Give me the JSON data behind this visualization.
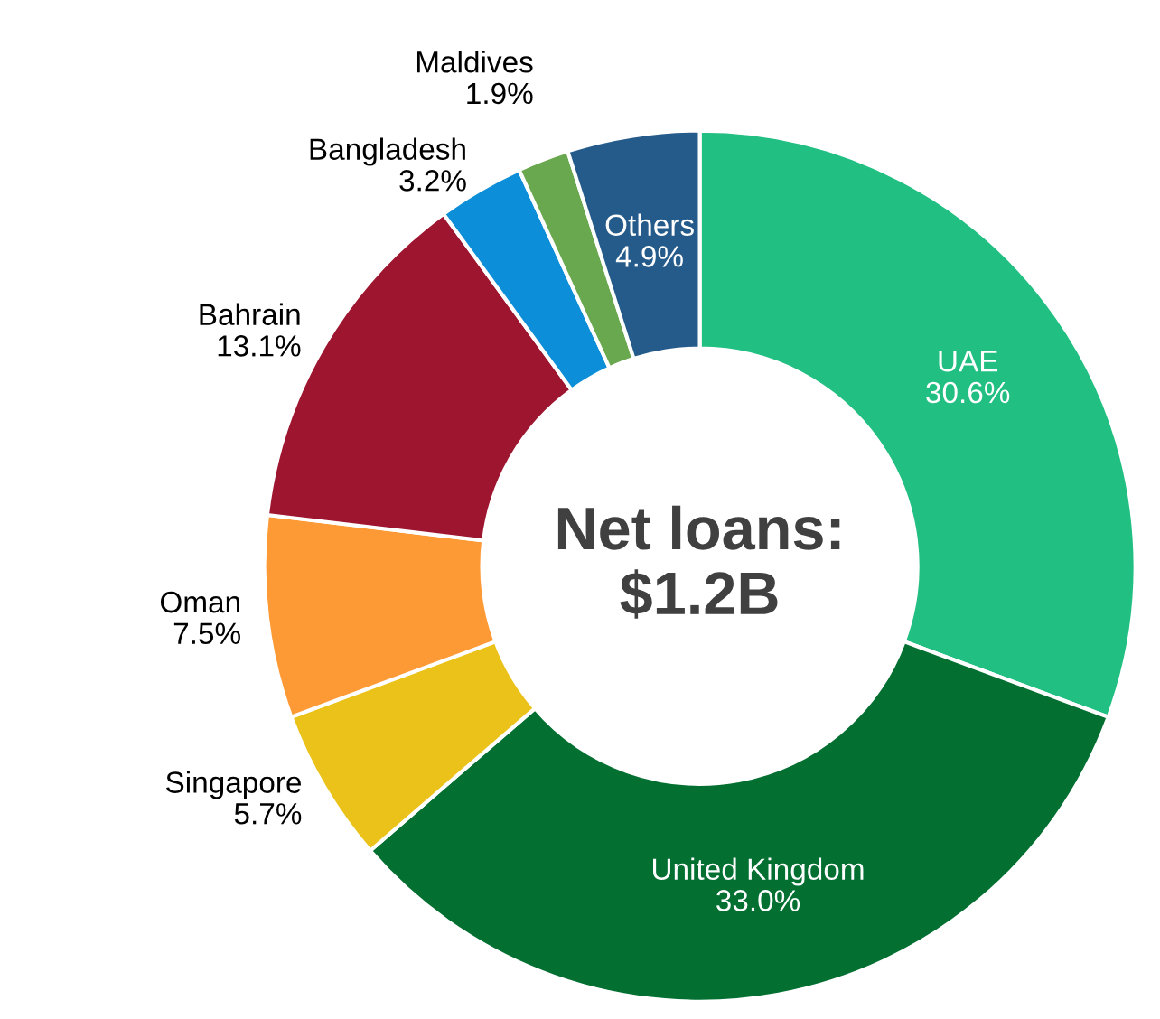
{
  "chart_data": {
    "type": "donut",
    "title": "Net loans:\n$1.2B",
    "categories": [
      "UAE",
      "United Kingdom",
      "Singapore",
      "Oman",
      "Bahrain",
      "Bangladesh",
      "Maldives",
      "Others"
    ],
    "values": [
      30.6,
      33.0,
      5.7,
      7.5,
      13.1,
      3.2,
      1.9,
      4.9
    ],
    "colors": [
      "#21bf82",
      "#037032",
      "#ebc21a",
      "#fd9a35",
      "#9e1530",
      "#0d8ed8",
      "#6aa84f",
      "#255b8a"
    ],
    "value_labels": [
      "30.6%",
      "33.0%",
      "5.7%",
      "7.5%",
      "13.1%",
      "3.2%",
      "1.9%",
      "4.9%"
    ],
    "legend": false
  }
}
